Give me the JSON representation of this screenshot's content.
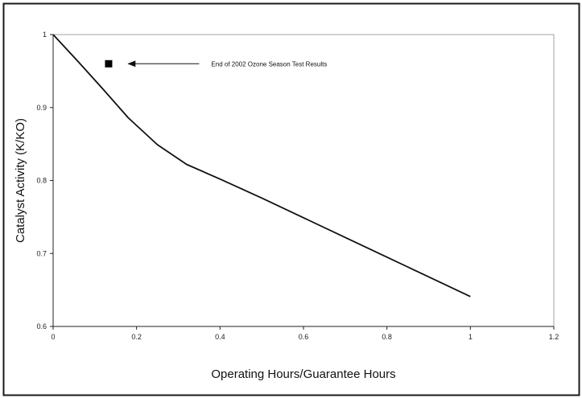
{
  "chart_data": {
    "type": "line",
    "title": "",
    "xlabel": "Operating Hours/Guarantee Hours",
    "ylabel": "Catalyst Activity (K/KO)",
    "xlim": [
      0,
      1.2
    ],
    "ylim": [
      0.6,
      1.0
    ],
    "x_ticks": [
      0,
      0.2,
      0.4,
      0.6,
      0.8,
      1,
      1.2
    ],
    "x_tick_labels": [
      "0",
      "0.2",
      "0.4",
      "0.6",
      "0.8",
      "1",
      "1.2"
    ],
    "y_ticks": [
      0.6,
      0.7,
      0.8,
      0.9,
      1.0
    ],
    "y_tick_labels": [
      "0.6",
      "0.7",
      "0.8",
      "0.9",
      "1"
    ],
    "grid": false,
    "legend": "none",
    "series": [
      {
        "type": "line",
        "x": [
          0,
          0.06,
          0.12,
          0.18,
          0.25,
          0.32,
          0.4,
          0.5,
          0.6,
          0.7,
          0.8,
          0.9,
          1.0
        ],
        "y": [
          1.0,
          0.963,
          0.925,
          0.886,
          0.849,
          0.822,
          0.802,
          0.776,
          0.749,
          0.722,
          0.695,
          0.668,
          0.641
        ],
        "color": "#111111"
      },
      {
        "type": "scatter",
        "marker": "square",
        "x": [
          0.133
        ],
        "y": [
          0.96
        ],
        "color": "#000000"
      }
    ],
    "annotations": [
      {
        "text": "End of 2002 Ozone Season Test Results",
        "arrow_from": [
          0.35,
          0.96
        ],
        "arrow_to": [
          0.18,
          0.96
        ]
      }
    ]
  }
}
